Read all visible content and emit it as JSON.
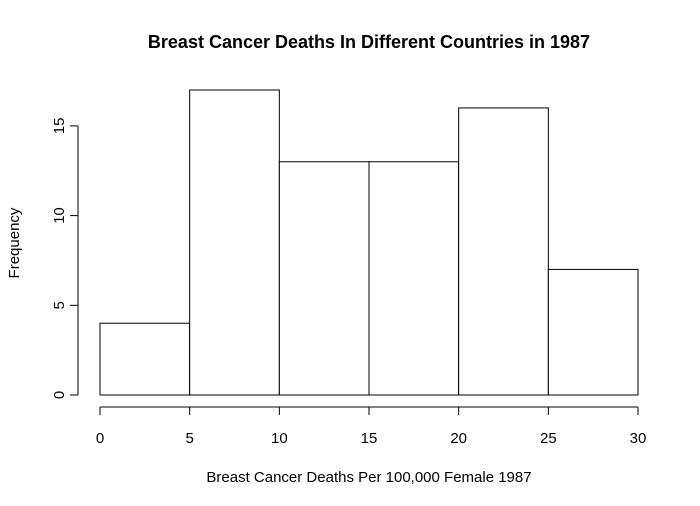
{
  "chart_data": {
    "type": "bar",
    "title": "Breast Cancer Deaths In Different Countries in 1987",
    "xlabel": "Breast Cancer Deaths Per 100,000 Female 1987",
    "ylabel": "Frequency",
    "bins": [
      [
        0,
        5
      ],
      [
        5,
        10
      ],
      [
        10,
        15
      ],
      [
        15,
        20
      ],
      [
        20,
        25
      ],
      [
        25,
        30
      ]
    ],
    "values": [
      4,
      17,
      13,
      13,
      16,
      7
    ],
    "xlim": [
      0,
      30
    ],
    "ylim": [
      0,
      17
    ],
    "xticks": [
      "0",
      "5",
      "10",
      "15",
      "20",
      "25",
      "30"
    ],
    "yticks": [
      "0",
      "5",
      "10",
      "15"
    ],
    "grid": false
  }
}
